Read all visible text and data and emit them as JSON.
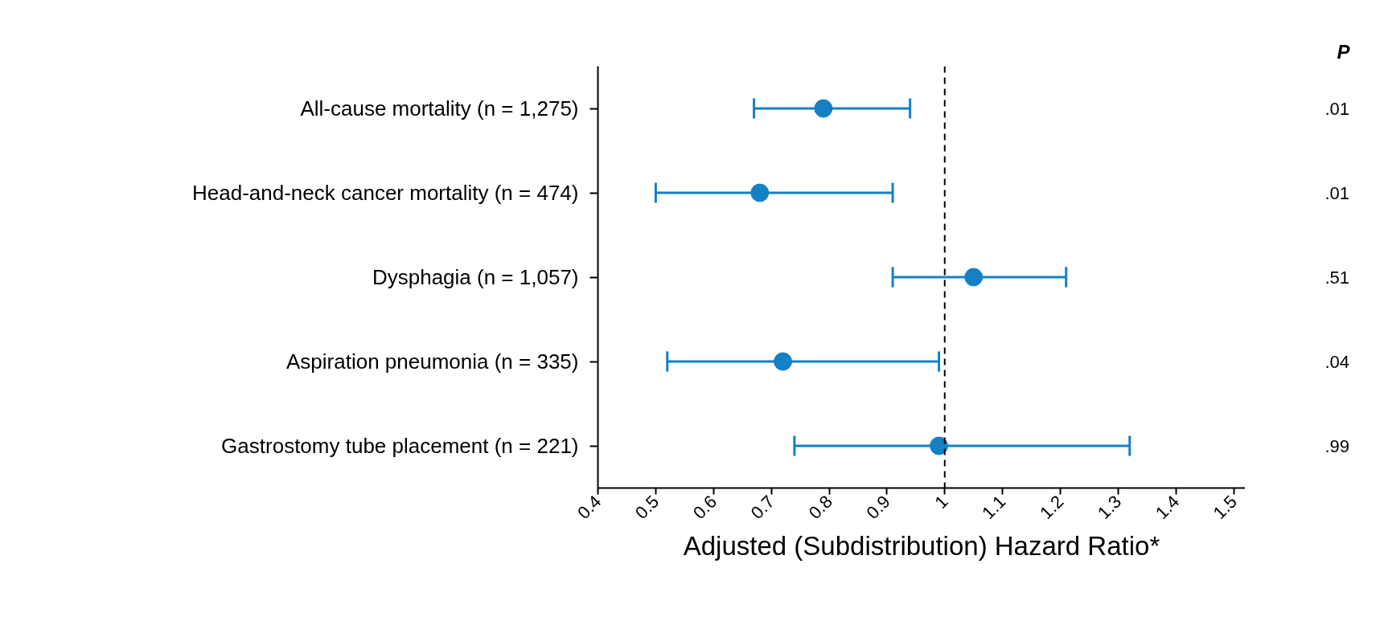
{
  "chart_data": {
    "type": "scatter",
    "orientation": "horizontal",
    "xlabel": "Adjusted (Subdistribution) Hazard Ratio*",
    "categories": [
      "All-cause mortality (n = 1,275)",
      "Head-and-neck cancer mortality (n = 474)",
      "Dysphagia (n = 1,057)",
      "Aspiration pneumonia (n = 335)",
      "Gastrostomy tube placement (n = 221)"
    ],
    "values": [
      0.79,
      0.68,
      1.05,
      0.72,
      0.99
    ],
    "errors": [
      [
        0.67,
        0.94
      ],
      [
        0.5,
        0.91
      ],
      [
        0.91,
        1.21
      ],
      [
        0.52,
        0.99
      ],
      [
        0.74,
        1.32
      ]
    ],
    "color": "#1580c4",
    "marker": "circle",
    "xlim": [
      0.4,
      1.52
    ],
    "xticks": [
      0.4,
      0.5,
      0.6,
      0.7,
      0.8,
      0.9,
      1,
      1.1,
      1.2,
      1.3,
      1.4,
      1.5
    ],
    "ref_lines": [
      {
        "axis": "x",
        "value": 1,
        "line_style": "dashed",
        "color": "#000000"
      }
    ],
    "grid": false,
    "annotations": [
      "P",
      ".01",
      ".01",
      ".51",
      ".04",
      ".99"
    ]
  }
}
